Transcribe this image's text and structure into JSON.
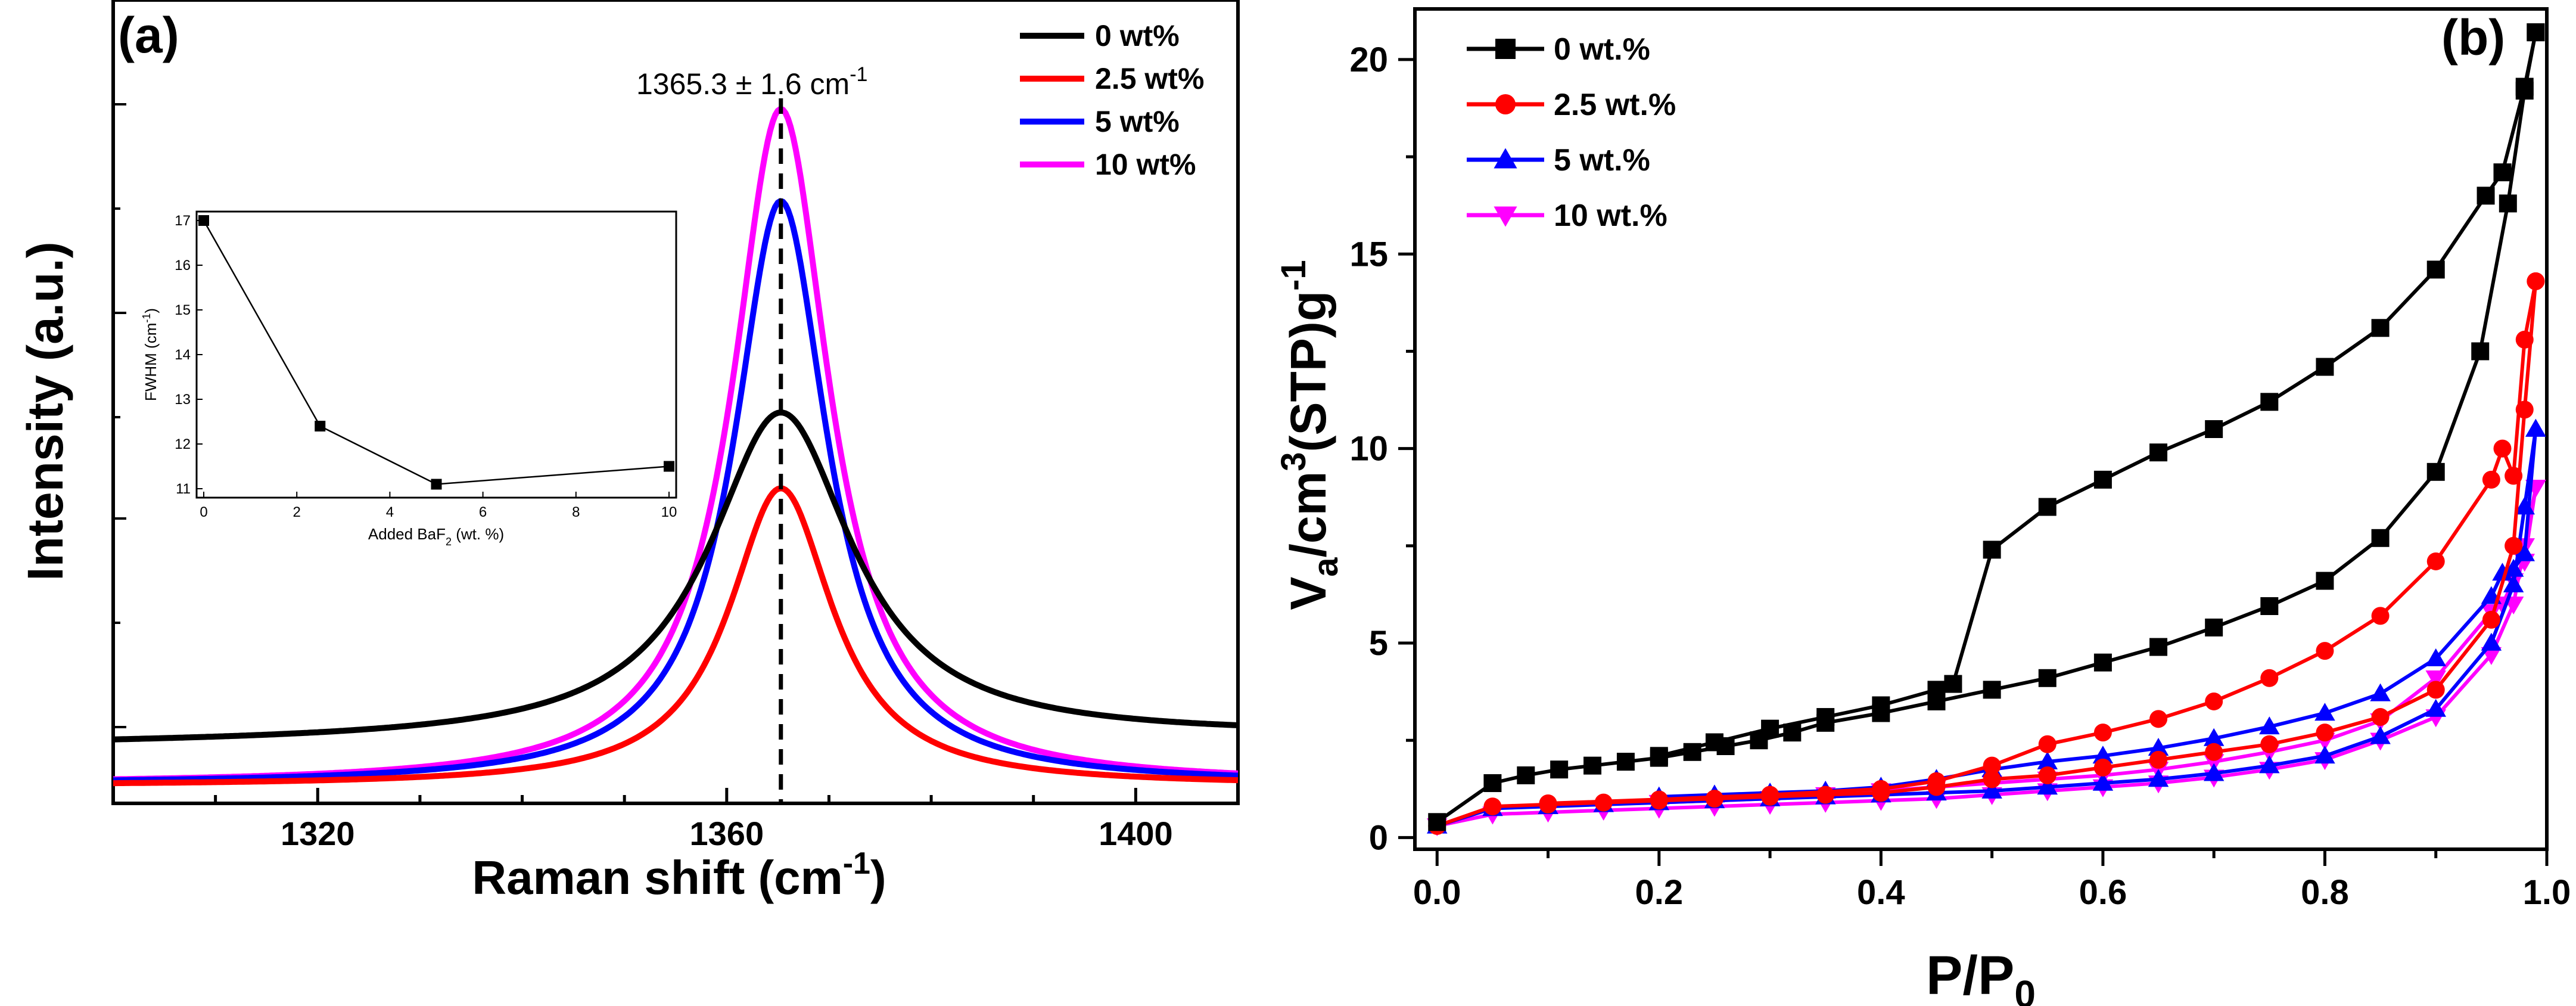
{
  "chart_data": [
    {
      "type": "line",
      "panel_label": "(a)",
      "xlabel": "Raman shift (cm",
      "xlabel_sup": "-1",
      "xlabel_end": ")",
      "ylabel": "Intensity (a.u.)",
      "xlim": [
        1300,
        1410
      ],
      "ylim": [
        0,
        1.0
      ],
      "xticks": [
        1320,
        1360,
        1400
      ],
      "peak_annotation": "1365.3 ± 1.6 cm",
      "peak_annotation_sup": "-1",
      "peak_position": 1365.3,
      "legend_position": "top-right",
      "series": [
        {
          "name": "0 wt%",
          "color": "#000000",
          "peak": 1365.3,
          "fwhm": 17.0,
          "baseline": 0.078,
          "amplitude": 0.48
        },
        {
          "name": "2.5 wt%",
          "color": "#ff0000",
          "peak": 1365.3,
          "fwhm": 12.4,
          "baseline": 0.01,
          "amplitude": 0.436
        },
        {
          "name": "5 wt%",
          "color": "#0000ff",
          "peak": 1365.3,
          "fwhm": 11.1,
          "baseline": 0.012,
          "amplitude": 0.855
        },
        {
          "name": "10 wt%",
          "color": "#ff00ff",
          "peak": 1365.3,
          "fwhm": 11.5,
          "baseline": 0.012,
          "amplitude": 0.99
        }
      ],
      "inset": {
        "type": "line",
        "xlabel": "Added BaF",
        "xlabel_sub": "2",
        "xlabel_end": " (wt. %)",
        "ylabel": "FWHM (cm",
        "ylabel_sup": "-1",
        "ylabel_end": ")",
        "xlim": [
          0,
          10
        ],
        "ylim": [
          11,
          17
        ],
        "xticks": [
          0,
          2,
          4,
          6,
          8,
          10
        ],
        "yticks": [
          11,
          12,
          13,
          14,
          15,
          16,
          17
        ],
        "x": [
          0,
          2.5,
          5,
          10
        ],
        "y": [
          17.0,
          12.4,
          11.1,
          11.5
        ]
      }
    },
    {
      "type": "line",
      "panel_label": "(b)",
      "xlabel": "P/P",
      "xlabel_sub": "0",
      "ylabel": "V",
      "ylabel_sub": "a",
      "ylabel_mid": "/cm",
      "ylabel_sup": "3",
      "ylabel_end": "(STP)g",
      "ylabel_sup2": "-1",
      "xlim": [
        -0.02,
        1.0
      ],
      "ylim": [
        -0.3,
        21.3
      ],
      "xticks": [
        0.0,
        0.2,
        0.4,
        0.6,
        0.8,
        1.0
      ],
      "xtick_labels": [
        "0.0",
        "0.2",
        "0.4",
        "0.6",
        "0.8",
        "1.0"
      ],
      "yticks": [
        0,
        5,
        10,
        15,
        20
      ],
      "legend_position": "top-left",
      "series": [
        {
          "name": "0 wt.%",
          "color": "#000000",
          "marker": "square",
          "adsorption_x": [
            0.0,
            0.05,
            0.08,
            0.11,
            0.14,
            0.17,
            0.2,
            0.23,
            0.26,
            0.29,
            0.32,
            0.35,
            0.4,
            0.45,
            0.5,
            0.55,
            0.6,
            0.65,
            0.7,
            0.75,
            0.8,
            0.85,
            0.9,
            0.94,
            0.965,
            0.98,
            0.99
          ],
          "adsorption_y": [
            0.4,
            1.4,
            1.6,
            1.75,
            1.85,
            1.95,
            2.05,
            2.2,
            2.35,
            2.5,
            2.7,
            2.95,
            3.2,
            3.5,
            3.8,
            4.1,
            4.5,
            4.9,
            5.4,
            5.95,
            6.6,
            7.7,
            9.4,
            12.5,
            16.3,
            19.2,
            20.7
          ],
          "desorption_x": [
            0.99,
            0.98,
            0.96,
            0.945,
            0.9,
            0.85,
            0.8,
            0.75,
            0.7,
            0.65,
            0.6,
            0.55,
            0.5,
            0.465,
            0.45,
            0.4,
            0.35,
            0.3,
            0.25,
            0.2
          ],
          "desorption_y": [
            20.7,
            19.3,
            17.1,
            16.5,
            14.6,
            13.1,
            12.1,
            11.2,
            10.5,
            9.9,
            9.2,
            8.5,
            7.4,
            3.95,
            3.8,
            3.4,
            3.1,
            2.8,
            2.45,
            2.1
          ]
        },
        {
          "name": "2.5  wt.%",
          "color": "#ff0000",
          "marker": "circle",
          "adsorption_x": [
            0.0,
            0.05,
            0.1,
            0.15,
            0.2,
            0.25,
            0.3,
            0.35,
            0.4,
            0.45,
            0.5,
            0.55,
            0.6,
            0.65,
            0.7,
            0.75,
            0.8,
            0.85,
            0.9,
            0.95,
            0.97,
            0.98,
            0.99
          ],
          "adsorption_y": [
            0.3,
            0.8,
            0.85,
            0.9,
            0.95,
            1.0,
            1.05,
            1.1,
            1.15,
            1.3,
            1.5,
            1.6,
            1.8,
            2.0,
            2.2,
            2.4,
            2.7,
            3.1,
            3.8,
            5.6,
            7.5,
            11.0,
            14.3
          ],
          "desorption_x": [
            0.99,
            0.98,
            0.97,
            0.96,
            0.95,
            0.9,
            0.85,
            0.8,
            0.75,
            0.7,
            0.65,
            0.6,
            0.55,
            0.5,
            0.45,
            0.4,
            0.3,
            0.2,
            0.1
          ],
          "desorption_y": [
            14.3,
            12.8,
            9.3,
            10.0,
            9.2,
            7.1,
            5.7,
            4.8,
            4.1,
            3.5,
            3.05,
            2.7,
            2.4,
            1.85,
            1.45,
            1.25,
            1.1,
            0.98,
            0.88
          ]
        },
        {
          "name": "5 wt.%",
          "color": "#0000ff",
          "marker": "triangle-up",
          "adsorption_x": [
            0.0,
            0.05,
            0.1,
            0.15,
            0.2,
            0.25,
            0.3,
            0.35,
            0.4,
            0.45,
            0.5,
            0.55,
            0.6,
            0.65,
            0.7,
            0.75,
            0.8,
            0.85,
            0.9,
            0.95,
            0.97,
            0.98,
            0.99
          ],
          "adsorption_y": [
            0.3,
            0.75,
            0.8,
            0.85,
            0.9,
            0.95,
            1.0,
            1.05,
            1.1,
            1.15,
            1.2,
            1.3,
            1.4,
            1.5,
            1.65,
            1.85,
            2.1,
            2.6,
            3.3,
            5.0,
            6.5,
            8.5,
            10.5
          ],
          "desorption_x": [
            0.99,
            0.98,
            0.97,
            0.96,
            0.95,
            0.9,
            0.85,
            0.8,
            0.75,
            0.7,
            0.65,
            0.6,
            0.55,
            0.5,
            0.45,
            0.4,
            0.35,
            0.3,
            0.25,
            0.2
          ],
          "desorption_y": [
            10.5,
            7.3,
            6.9,
            6.8,
            6.2,
            4.6,
            3.7,
            3.2,
            2.85,
            2.55,
            2.3,
            2.1,
            1.95,
            1.75,
            1.5,
            1.3,
            1.2,
            1.15,
            1.1,
            1.05
          ]
        },
        {
          "name": "10 wt.%",
          "color": "#ff00ff",
          "marker": "triangle-down",
          "adsorption_x": [
            0.0,
            0.05,
            0.1,
            0.15,
            0.2,
            0.25,
            0.3,
            0.35,
            0.4,
            0.45,
            0.5,
            0.55,
            0.6,
            0.65,
            0.7,
            0.75,
            0.8,
            0.85,
            0.9,
            0.95,
            0.97,
            0.98,
            0.99
          ],
          "adsorption_y": [
            0.3,
            0.6,
            0.65,
            0.7,
            0.75,
            0.8,
            0.85,
            0.9,
            0.95,
            1.0,
            1.1,
            1.2,
            1.3,
            1.4,
            1.55,
            1.75,
            2.0,
            2.5,
            3.1,
            4.7,
            6.0,
            7.5,
            9.0
          ],
          "desorption_x": [
            0.99,
            0.98,
            0.97,
            0.96,
            0.95,
            0.9,
            0.85,
            0.8,
            0.75,
            0.7,
            0.65,
            0.6,
            0.55,
            0.5,
            0.45,
            0.4,
            0.35,
            0.3,
            0.2
          ],
          "desorption_y": [
            9.0,
            7.1,
            6.6,
            6.0,
            5.8,
            4.1,
            3.0,
            2.5,
            2.2,
            1.95,
            1.75,
            1.6,
            1.5,
            1.4,
            1.3,
            1.2,
            1.1,
            1.0,
            0.9
          ]
        }
      ]
    }
  ]
}
